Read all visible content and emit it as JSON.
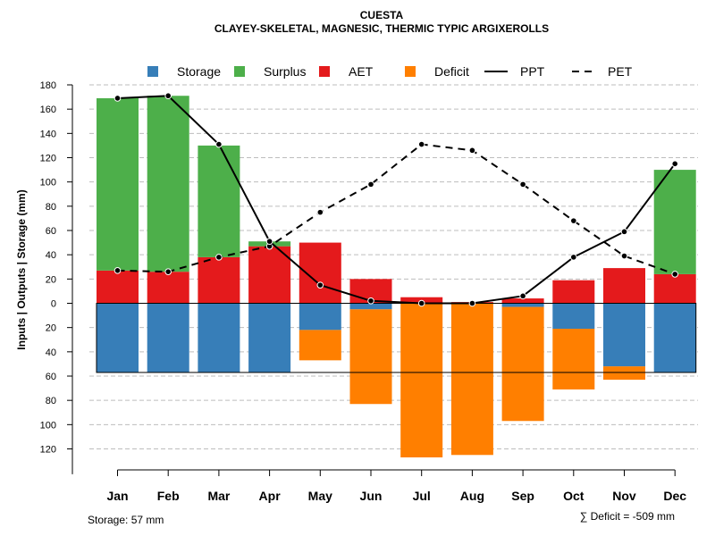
{
  "chart_data": {
    "type": "bar",
    "title": "CUESTA",
    "subtitle": "CLAYEY-SKELETAL, MAGNESIC, THERMIC TYPIC ARGIXEROLLS",
    "ylabel": "Inputs | Outputs | Storage    (mm)",
    "ylim": [
      -135,
      180
    ],
    "yticks": [
      180,
      160,
      140,
      120,
      100,
      80,
      60,
      40,
      20,
      0,
      -20,
      -40,
      -60,
      -80,
      -100,
      -120
    ],
    "ytick_labels": [
      "180",
      "160",
      "140",
      "120",
      "100",
      "80",
      "60",
      "40",
      "20",
      "0",
      "20",
      "40",
      "60",
      "80",
      "100",
      "120"
    ],
    "categories": [
      "Jan",
      "Feb",
      "Mar",
      "Apr",
      "May",
      "Jun",
      "Jul",
      "Aug",
      "Sep",
      "Oct",
      "Nov",
      "Dec"
    ],
    "series": [
      {
        "name": "Storage",
        "color": "#377EB8",
        "kind": "bar",
        "values": [
          -57,
          -57,
          -57,
          -57,
          -22,
          -5,
          0,
          0,
          -3,
          -21,
          -52,
          -57
        ]
      },
      {
        "name": "Surplus",
        "color": "#4DAF4A",
        "kind": "bar",
        "values": [
          142,
          145,
          92,
          4,
          0,
          0,
          0,
          0,
          0,
          0,
          0,
          86
        ]
      },
      {
        "name": "AET",
        "color": "#E41A1C",
        "kind": "bar",
        "values": [
          27,
          26,
          38,
          47,
          50,
          20,
          5,
          1,
          4,
          19,
          29,
          24
        ]
      },
      {
        "name": "Deficit",
        "color": "#FF7F00",
        "kind": "bar",
        "values": [
          0,
          0,
          0,
          0,
          -25,
          -78,
          -127,
          -125,
          -94,
          -50,
          -11,
          0
        ]
      },
      {
        "name": "PPT",
        "color": "#000000",
        "kind": "line",
        "dash": "solid",
        "values": [
          169,
          171,
          131,
          51,
          15,
          2,
          0,
          0,
          6,
          38,
          59,
          115
        ]
      },
      {
        "name": "PET",
        "color": "#000000",
        "kind": "line",
        "dash": "dashed",
        "values": [
          27,
          26,
          38,
          47,
          75,
          98,
          131,
          126,
          98,
          68,
          39,
          24
        ]
      }
    ],
    "storage_capacity": -57,
    "legend_position": "top",
    "grid": true,
    "storage_note": "Storage: 57 mm",
    "deficit_note": "∑ Deficit = -509 mm"
  }
}
